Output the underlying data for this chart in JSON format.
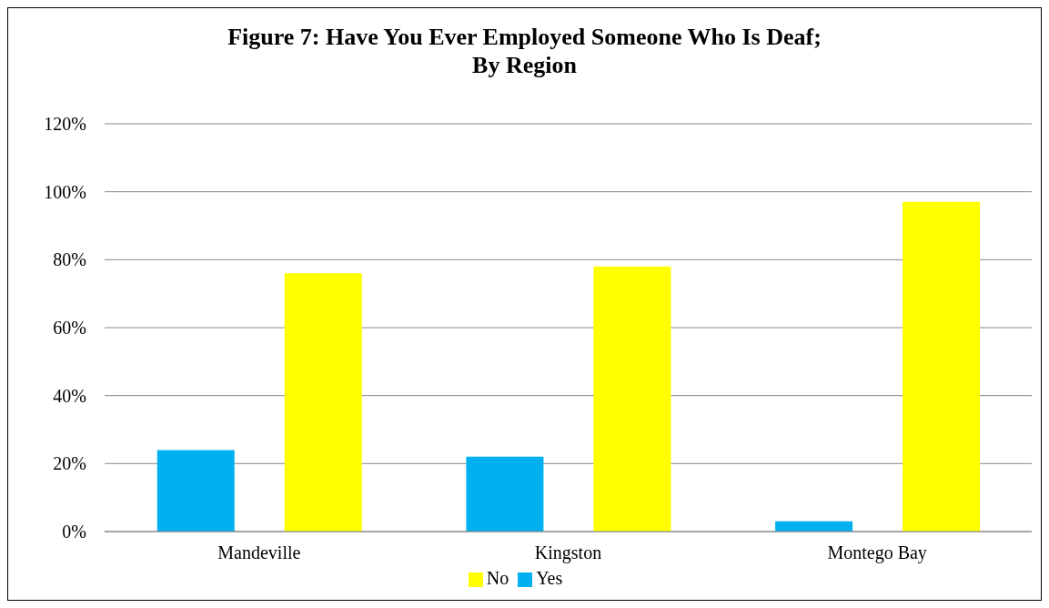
{
  "chart_data": {
    "type": "bar",
    "title": "Figure 7: Have You Ever Employed Someone Who Is Deaf;\nBy Region",
    "categories": [
      "Mandeville",
      "Kingston",
      "Montego Bay"
    ],
    "series": [
      {
        "name": "Yes",
        "color": "#00b0f0",
        "values": [
          24,
          22,
          3
        ]
      },
      {
        "name": "No",
        "color": "#ffff00",
        "values": [
          76,
          78,
          97
        ]
      }
    ],
    "ylim": [
      0,
      120
    ],
    "yticks": [
      {
        "value": 0,
        "label": "0%"
      },
      {
        "value": 20,
        "label": "20%"
      },
      {
        "value": 40,
        "label": "40%"
      },
      {
        "value": 60,
        "label": "60%"
      },
      {
        "value": 80,
        "label": "80%"
      },
      {
        "value": 100,
        "label": "100%"
      },
      {
        "value": 120,
        "label": "120%"
      }
    ],
    "grid": "y",
    "legend": "bottom"
  }
}
